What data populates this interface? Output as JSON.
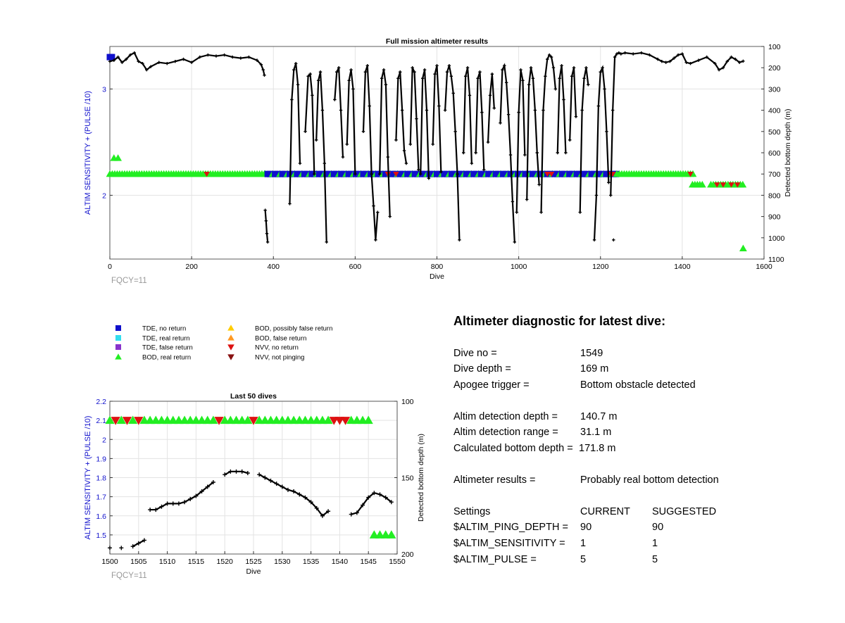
{
  "chart_data": [
    {
      "type": "scatter",
      "title": "Full mission altimeter results",
      "xlabel": "Dive",
      "ylabel_left": "ALTIM SENSITIVITY + (PULSE /10)",
      "ylabel_right": "Detected bottom depth (m)",
      "footnote": "FQCY=11",
      "xlim": [
        0,
        1600
      ],
      "ylim_left": [
        1.4,
        3.4
      ],
      "ylim_right": [
        1100,
        100
      ],
      "xticks": [
        0,
        200,
        400,
        600,
        800,
        1000,
        1200,
        1400,
        1600
      ],
      "yticks_left": [
        2,
        3
      ],
      "yticks_right": [
        100,
        200,
        300,
        400,
        500,
        600,
        700,
        800,
        900,
        1000,
        1100
      ],
      "grid": true,
      "depth_series": [
        {
          "x": [
            0,
            10,
            20,
            30,
            40,
            50,
            60,
            70,
            80,
            90,
            100,
            120,
            140,
            160,
            180,
            200,
            220,
            240,
            260,
            280,
            300,
            320,
            340,
            360,
            370,
            375,
            378
          ],
          "y": [
            170,
            165,
            150,
            175,
            160,
            140,
            130,
            170,
            180,
            210,
            195,
            175,
            180,
            170,
            160,
            175,
            150,
            140,
            145,
            140,
            150,
            155,
            150,
            165,
            185,
            210,
            235
          ]
        },
        {
          "x": [
            380,
            382,
            384,
            386
          ],
          "y": [
            870,
            920,
            980,
            1020
          ]
        },
        {
          "x": [
            440,
            445,
            450,
            455,
            460,
            465
          ],
          "y": [
            840,
            350,
            210,
            180,
            280,
            650
          ]
        },
        {
          "x": [
            478,
            485,
            490,
            495,
            500
          ],
          "y": [
            500,
            240,
            230,
            330,
            700
          ]
        },
        {
          "x": [
            505,
            510,
            515,
            520,
            525,
            530
          ],
          "y": [
            540,
            260,
            220,
            400,
            650,
            1020
          ]
        },
        {
          "x": [
            550,
            555,
            560,
            565,
            570
          ],
          "y": [
            350,
            220,
            200,
            400,
            620
          ]
        },
        {
          "x": [
            580,
            585,
            590,
            595,
            600
          ],
          "y": [
            560,
            260,
            210,
            300,
            700
          ]
        },
        {
          "x": [
            620,
            625,
            630,
            635,
            640,
            645,
            650,
            655
          ],
          "y": [
            500,
            220,
            190,
            380,
            700,
            850,
            1010,
            880
          ]
        },
        {
          "x": [
            660,
            665,
            670,
            675,
            680,
            685
          ],
          "y": [
            700,
            250,
            210,
            280,
            620,
            900
          ]
        },
        {
          "x": [
            700,
            705,
            710,
            715,
            720,
            725
          ],
          "y": [
            540,
            250,
            220,
            400,
            590,
            650
          ]
        },
        {
          "x": [
            735,
            740,
            745,
            750,
            755
          ],
          "y": [
            560,
            200,
            220,
            440,
            680
          ]
        },
        {
          "x": [
            760,
            765,
            770,
            775,
            780
          ],
          "y": [
            700,
            250,
            210,
            400,
            720
          ]
        },
        {
          "x": [
            790,
            795,
            800,
            805,
            810
          ],
          "y": [
            560,
            230,
            190,
            380,
            690
          ]
        },
        {
          "x": [
            820,
            825,
            830,
            835,
            840,
            845,
            850,
            855
          ],
          "y": [
            400,
            220,
            190,
            240,
            320,
            500,
            700,
            1010
          ]
        },
        {
          "x": [
            865,
            870,
            875,
            880,
            885
          ],
          "y": [
            600,
            240,
            200,
            330,
            650
          ]
        },
        {
          "x": [
            895,
            900,
            905,
            910,
            915
          ],
          "y": [
            600,
            250,
            220,
            410,
            680
          ]
        },
        {
          "x": [
            925,
            930,
            935,
            940
          ],
          "y": [
            550,
            330,
            230,
            390
          ]
        },
        {
          "x": [
            955,
            960,
            965,
            970,
            975,
            980,
            985,
            990
          ],
          "y": [
            460,
            210,
            190,
            270,
            420,
            610,
            830,
            1020
          ]
        },
        {
          "x": [
            995,
            1000,
            1005,
            1010,
            1015
          ],
          "y": [
            880,
            410,
            210,
            260,
            610
          ]
        },
        {
          "x": [
            1020,
            1025,
            1030,
            1035,
            1040,
            1045,
            1050
          ],
          "y": [
            820,
            280,
            200,
            250,
            400,
            600,
            750
          ]
        },
        {
          "x": [
            1055,
            1060,
            1065,
            1070,
            1075,
            1080,
            1085,
            1090
          ],
          "y": [
            880,
            400,
            240,
            160,
            140,
            150,
            200,
            300
          ]
        },
        {
          "x": [
            1095,
            1100,
            1105,
            1110,
            1115
          ],
          "y": [
            600,
            250,
            190,
            350,
            600
          ]
        },
        {
          "x": [
            1125,
            1130,
            1135,
            1140
          ],
          "y": [
            540,
            240,
            200,
            430
          ]
        },
        {
          "x": [
            1150,
            1155,
            1160,
            1165,
            1170
          ],
          "y": [
            880,
            400,
            250,
            200,
            280
          ]
        },
        {
          "x": [
            1185,
            1190,
            1195,
            1200,
            1205,
            1210,
            1215,
            1220
          ],
          "y": [
            1010,
            800,
            380,
            220,
            200,
            300,
            500,
            740
          ]
        },
        {
          "x": [
            1225,
            1230,
            1235,
            1240,
            1245,
            1250,
            1260,
            1280,
            1300,
            1320,
            1340,
            1350,
            1360,
            1370,
            1380,
            1390,
            1400,
            1410,
            1420,
            1440,
            1460,
            1480,
            1490,
            1500,
            1510,
            1520,
            1530,
            1540,
            1549
          ],
          "y": [
            800,
            400,
            150,
            135,
            130,
            135,
            130,
            135,
            130,
            140,
            160,
            170,
            175,
            170,
            155,
            140,
            135,
            175,
            180,
            165,
            150,
            180,
            210,
            200,
            170,
            150,
            160,
            175,
            169
          ]
        },
        {
          "x": [
            1232
          ],
          "y": [
            1010
          ]
        }
      ],
      "altim_markers": [
        {
          "legend": "TDE, no return",
          "x": [
            0,
            5
          ],
          "y": [
            3.3,
            3.3
          ]
        },
        {
          "legend": "BOD, real return",
          "x": [
            10,
            20
          ],
          "y": [
            2.35,
            2.35
          ]
        },
        {
          "legend": "BOD, real return",
          "x_range": [
            0,
            380
          ],
          "y": 2.2
        },
        {
          "legend": "TDE, no return",
          "x_range": [
            380,
            1240
          ],
          "y": 2.2,
          "mixed_with": "BOD, real return"
        },
        {
          "legend": "BOD, real return",
          "x_range": [
            1240,
            1430
          ],
          "y": 2.2
        },
        {
          "legend": "BOD, real return",
          "x_range": [
            1425,
            1450
          ],
          "y": 2.1
        },
        {
          "legend": "BOD, real return",
          "x_range": [
            1470,
            1549
          ],
          "y": 2.1
        },
        {
          "legend": "NVV, no return",
          "x": [
            237,
            680,
            700,
            1070,
            1080,
            1225,
            1230,
            1420,
            1485,
            1500,
            1520,
            1535
          ],
          "y": [
            2.2,
            2.2,
            2.2,
            2.2,
            2.2,
            2.2,
            2.2,
            2.2,
            2.1,
            2.1,
            2.1,
            2.1
          ]
        },
        {
          "legend": "BOD, real return",
          "x": [
            1549
          ],
          "y": 1.5
        }
      ]
    },
    {
      "type": "scatter",
      "title": "Last 50 dives",
      "xlabel": "Dive",
      "ylabel_left": "ALTIM SENSITIVITY + (PULSE /10)",
      "ylabel_right": "Detected bottom depth (m)",
      "footnote": "FQCY=11",
      "xlim": [
        1500,
        1550
      ],
      "ylim_left": [
        1.4,
        2.2
      ],
      "ylim_right": [
        200,
        100
      ],
      "xticks": [
        1500,
        1505,
        1510,
        1515,
        1520,
        1525,
        1530,
        1535,
        1540,
        1545,
        1550
      ],
      "yticks_left": [
        1.5,
        1.6,
        1.7,
        1.8,
        1.9,
        2,
        2.1,
        2.2
      ],
      "yticks_right": [
        100,
        150,
        200
      ],
      "grid": true,
      "markers_bod": {
        "legend": "BOD, real return",
        "x": [
          1500,
          1502,
          1504,
          1506,
          1507,
          1508,
          1509,
          1510,
          1511,
          1512,
          1513,
          1514,
          1515,
          1516,
          1517,
          1518,
          1520,
          1521,
          1522,
          1523,
          1524,
          1526,
          1527,
          1528,
          1529,
          1530,
          1531,
          1532,
          1533,
          1534,
          1535,
          1536,
          1537,
          1538,
          1542,
          1543,
          1544,
          1545
        ],
        "y": 2.1
      },
      "markers_nvv": {
        "legend": "NVV, no return",
        "x": [
          1501,
          1503,
          1505,
          1519,
          1525,
          1539,
          1540,
          1541
        ],
        "y": 2.1
      },
      "markers_low": {
        "legend": "BOD, real return",
        "x": [
          1546,
          1547,
          1548,
          1549
        ],
        "y": 1.5
      },
      "depth_series": [
        {
          "x": [
            1500
          ],
          "y": [
            196
          ]
        },
        {
          "x": [
            1502
          ],
          "y": [
            196
          ]
        },
        {
          "x": [
            1504,
            1505,
            1506
          ],
          "y": [
            195,
            193,
            191
          ]
        },
        {
          "x": [
            1507,
            1508,
            1509,
            1510,
            1511,
            1512,
            1513,
            1514,
            1515,
            1516,
            1517,
            1518
          ],
          "y": [
            171,
            171,
            169,
            167,
            167,
            167,
            166,
            164,
            162,
            159,
            156,
            153
          ]
        },
        {
          "x": [
            1520,
            1521,
            1522,
            1523,
            1524,
            1525
          ],
          "y": [
            148,
            146,
            146,
            146,
            147,
            null
          ]
        },
        {
          "x": [
            1526,
            1527,
            1528,
            1529,
            1530,
            1531,
            1532,
            1533,
            1534,
            1535,
            1536,
            1537,
            1538
          ],
          "y": [
            148,
            150,
            152,
            154,
            156,
            158,
            159,
            161,
            163,
            166,
            170,
            175,
            172
          ]
        },
        {
          "x": [
            1542,
            1543,
            1544,
            1545,
            1546,
            1547,
            1548,
            1549
          ],
          "y": [
            174,
            173,
            168,
            163,
            160,
            161,
            163,
            166
          ]
        }
      ]
    }
  ],
  "legend": [
    {
      "label": "TDE, no return",
      "color": "#1010cc",
      "shape": "square"
    },
    {
      "label": "TDE, real return",
      "color": "#33ddee",
      "shape": "square"
    },
    {
      "label": "TDE, false return",
      "color": "#8833cc",
      "shape": "square"
    },
    {
      "label": "BOD, real return",
      "color": "#22ee22",
      "shape": "triangle-up"
    },
    {
      "label": "BOD, possibly false return",
      "color": "#ffcc00",
      "shape": "triangle-up"
    },
    {
      "label": "BOD, false return",
      "color": "#ff9922",
      "shape": "triangle-up"
    },
    {
      "label": "NVV, no return",
      "color": "#dd1111",
      "shape": "triangle-down"
    },
    {
      "label": "NVV, not pinging",
      "color": "#881111",
      "shape": "triangle-down"
    }
  ],
  "diagnostic": {
    "title": "Altimeter diagnostic for latest dive:",
    "rows": [
      {
        "label": "Dive no =",
        "value": "1549"
      },
      {
        "label": "Dive depth =",
        "value": "169 m"
      },
      {
        "label": "Apogee trigger =",
        "value": "Bottom obstacle detected"
      },
      {
        "label": "Altim detection depth =",
        "value": "140.7 m"
      },
      {
        "label": "Altim detection range =",
        "value": "31.1 m"
      },
      {
        "label": "Calculated bottom depth =",
        "value": "171.8 m"
      },
      {
        "label": "Altimeter results =",
        "value": "Probably real bottom detection"
      }
    ],
    "settings": {
      "header": [
        "Settings",
        "CURRENT",
        "SUGGESTED"
      ],
      "rows": [
        {
          "name": "$ALTIM_PING_DEPTH =",
          "current": "90",
          "suggested": "90"
        },
        {
          "name": "$ALTIM_SENSITIVITY =",
          "current": "1",
          "suggested": "1"
        },
        {
          "name": "$ALTIM_PULSE =",
          "current": "5",
          "suggested": "5"
        }
      ]
    }
  },
  "colors": {
    "axis_left": "#1010cc",
    "grid": "#e3e3e3",
    "depth_line": "#000000",
    "footnote": "#999999"
  }
}
